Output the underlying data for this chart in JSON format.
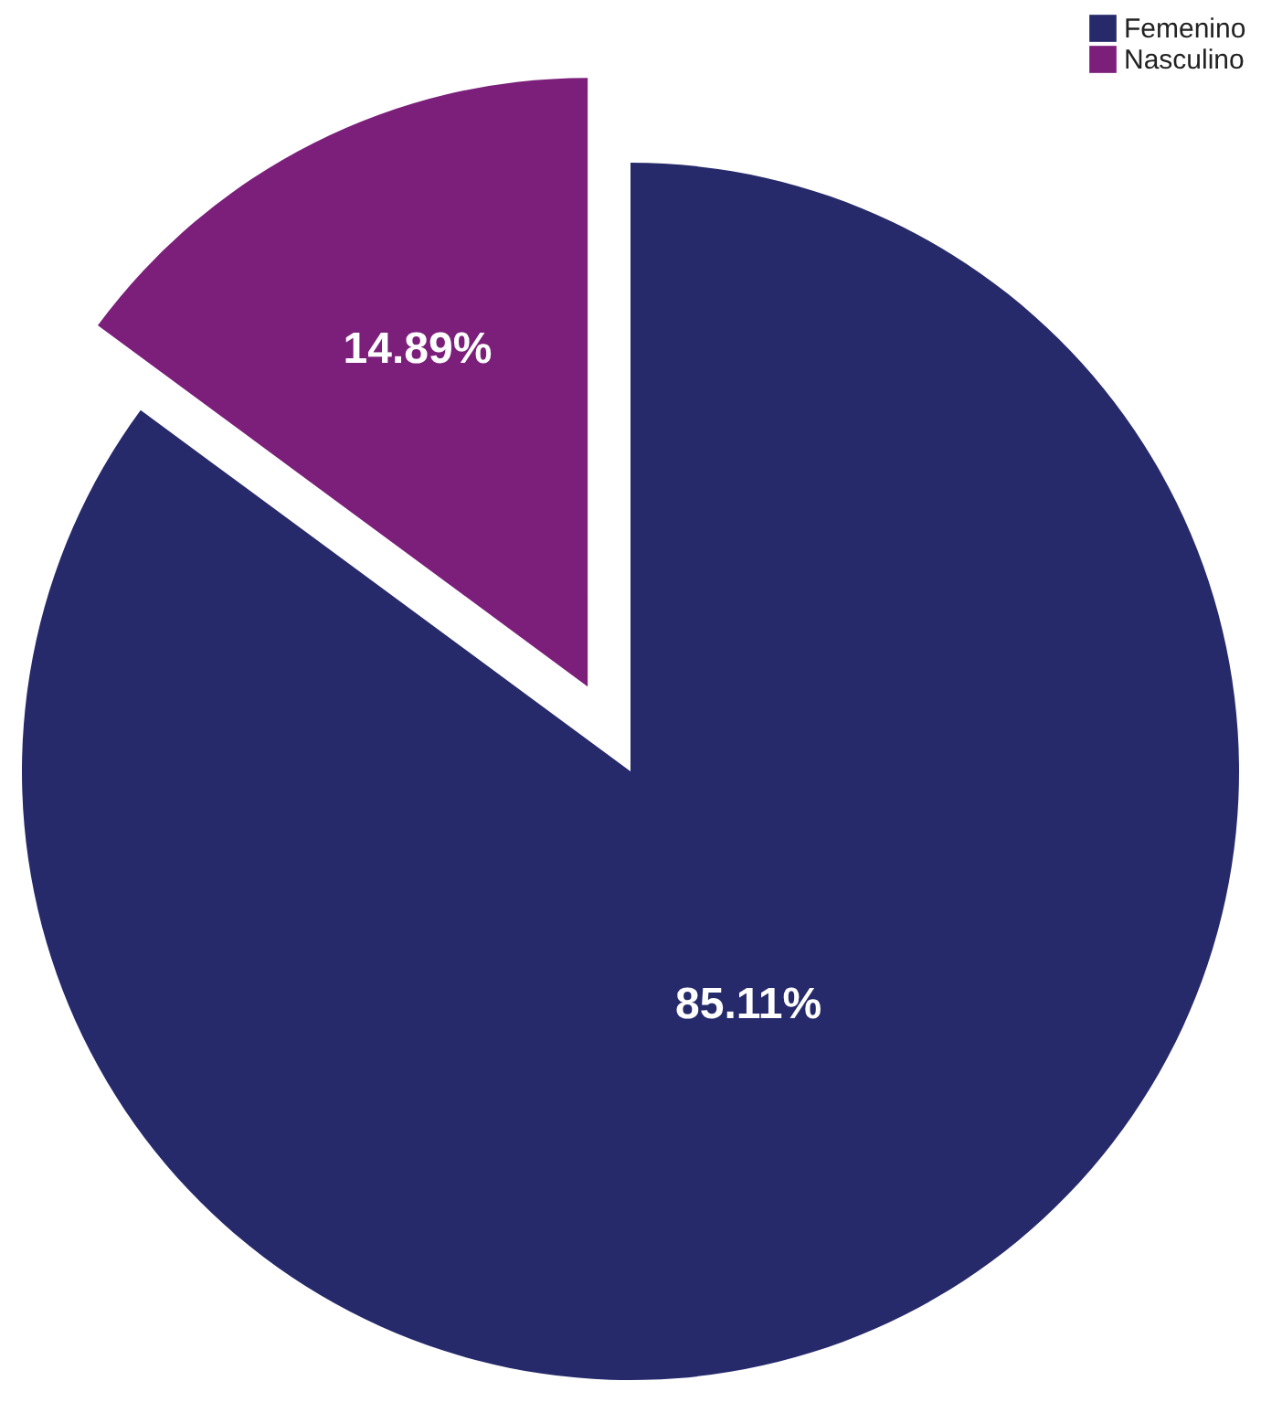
{
  "chart_data": {
    "type": "pie",
    "categories": [
      "Femenino",
      "Nasculino"
    ],
    "values": [
      85.11,
      14.89
    ],
    "colors": [
      "#262a6b",
      "#7b1f7a"
    ],
    "value_labels": [
      "85.11%",
      "14.89%"
    ],
    "legend": "top right"
  }
}
